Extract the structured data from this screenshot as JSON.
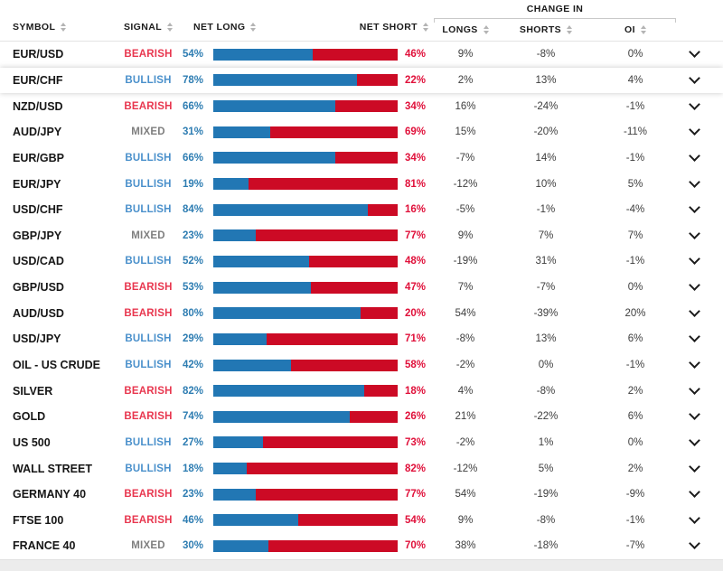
{
  "table": {
    "headers": {
      "symbol": "SYMBOL",
      "signal": "SIGNAL",
      "net_long": "NET LONG",
      "net_short": "NET SHORT",
      "change_in": "CHANGE IN",
      "longs": "LONGS",
      "shorts": "SHORTS",
      "oi": "OI"
    },
    "rows": [
      {
        "symbol": "EUR/USD",
        "signal": "BEARISH",
        "net_long": 54,
        "net_short": 46,
        "change_longs": "9%",
        "change_shorts": "-8%",
        "change_oi": "0%",
        "highlighted": false
      },
      {
        "symbol": "EUR/CHF",
        "signal": "BULLISH",
        "net_long": 78,
        "net_short": 22,
        "change_longs": "2%",
        "change_shorts": "13%",
        "change_oi": "4%",
        "highlighted": true
      },
      {
        "symbol": "NZD/USD",
        "signal": "BEARISH",
        "net_long": 66,
        "net_short": 34,
        "change_longs": "16%",
        "change_shorts": "-24%",
        "change_oi": "-1%",
        "highlighted": false
      },
      {
        "symbol": "AUD/JPY",
        "signal": "MIXED",
        "net_long": 31,
        "net_short": 69,
        "change_longs": "15%",
        "change_shorts": "-20%",
        "change_oi": "-11%",
        "highlighted": false
      },
      {
        "symbol": "EUR/GBP",
        "signal": "BULLISH",
        "net_long": 66,
        "net_short": 34,
        "change_longs": "-7%",
        "change_shorts": "14%",
        "change_oi": "-1%",
        "highlighted": false
      },
      {
        "symbol": "EUR/JPY",
        "signal": "BULLISH",
        "net_long": 19,
        "net_short": 81,
        "change_longs": "-12%",
        "change_shorts": "10%",
        "change_oi": "5%",
        "highlighted": false
      },
      {
        "symbol": "USD/CHF",
        "signal": "BULLISH",
        "net_long": 84,
        "net_short": 16,
        "change_longs": "-5%",
        "change_shorts": "-1%",
        "change_oi": "-4%",
        "highlighted": false
      },
      {
        "symbol": "GBP/JPY",
        "signal": "MIXED",
        "net_long": 23,
        "net_short": 77,
        "change_longs": "9%",
        "change_shorts": "7%",
        "change_oi": "7%",
        "highlighted": false
      },
      {
        "symbol": "USD/CAD",
        "signal": "BULLISH",
        "net_long": 52,
        "net_short": 48,
        "change_longs": "-19%",
        "change_shorts": "31%",
        "change_oi": "-1%",
        "highlighted": false
      },
      {
        "symbol": "GBP/USD",
        "signal": "BEARISH",
        "net_long": 53,
        "net_short": 47,
        "change_longs": "7%",
        "change_shorts": "-7%",
        "change_oi": "0%",
        "highlighted": false
      },
      {
        "symbol": "AUD/USD",
        "signal": "BEARISH",
        "net_long": 80,
        "net_short": 20,
        "change_longs": "54%",
        "change_shorts": "-39%",
        "change_oi": "20%",
        "highlighted": false
      },
      {
        "symbol": "USD/JPY",
        "signal": "BULLISH",
        "net_long": 29,
        "net_short": 71,
        "change_longs": "-8%",
        "change_shorts": "13%",
        "change_oi": "6%",
        "highlighted": false
      },
      {
        "symbol": "OIL - US CRUDE",
        "signal": "BULLISH",
        "net_long": 42,
        "net_short": 58,
        "change_longs": "-2%",
        "change_shorts": "0%",
        "change_oi": "-1%",
        "highlighted": false
      },
      {
        "symbol": "SILVER",
        "signal": "BEARISH",
        "net_long": 82,
        "net_short": 18,
        "change_longs": "4%",
        "change_shorts": "-8%",
        "change_oi": "2%",
        "highlighted": false
      },
      {
        "symbol": "GOLD",
        "signal": "BEARISH",
        "net_long": 74,
        "net_short": 26,
        "change_longs": "21%",
        "change_shorts": "-22%",
        "change_oi": "6%",
        "highlighted": false
      },
      {
        "symbol": "US 500",
        "signal": "BULLISH",
        "net_long": 27,
        "net_short": 73,
        "change_longs": "-2%",
        "change_shorts": "1%",
        "change_oi": "0%",
        "highlighted": false
      },
      {
        "symbol": "WALL STREET",
        "signal": "BULLISH",
        "net_long": 18,
        "net_short": 82,
        "change_longs": "-12%",
        "change_shorts": "5%",
        "change_oi": "2%",
        "highlighted": false
      },
      {
        "symbol": "GERMANY 40",
        "signal": "BEARISH",
        "net_long": 23,
        "net_short": 77,
        "change_longs": "54%",
        "change_shorts": "-19%",
        "change_oi": "-9%",
        "highlighted": false
      },
      {
        "symbol": "FTSE 100",
        "signal": "BEARISH",
        "net_long": 46,
        "net_short": 54,
        "change_longs": "9%",
        "change_shorts": "-8%",
        "change_oi": "-1%",
        "highlighted": false
      },
      {
        "symbol": "FRANCE 40",
        "signal": "MIXED",
        "net_long": 30,
        "net_short": 70,
        "change_longs": "38%",
        "change_shorts": "-18%",
        "change_oi": "-7%",
        "highlighted": false
      }
    ]
  },
  "colors": {
    "bar_long": "#2277b4",
    "bar_short": "#cc0a25",
    "net_long_text": "#2e7db2",
    "net_short_text": "#e0103a",
    "signal_bearish": "#e8374f",
    "signal_bullish": "#4a90cb",
    "signal_mixed": "#7f7f7f"
  }
}
